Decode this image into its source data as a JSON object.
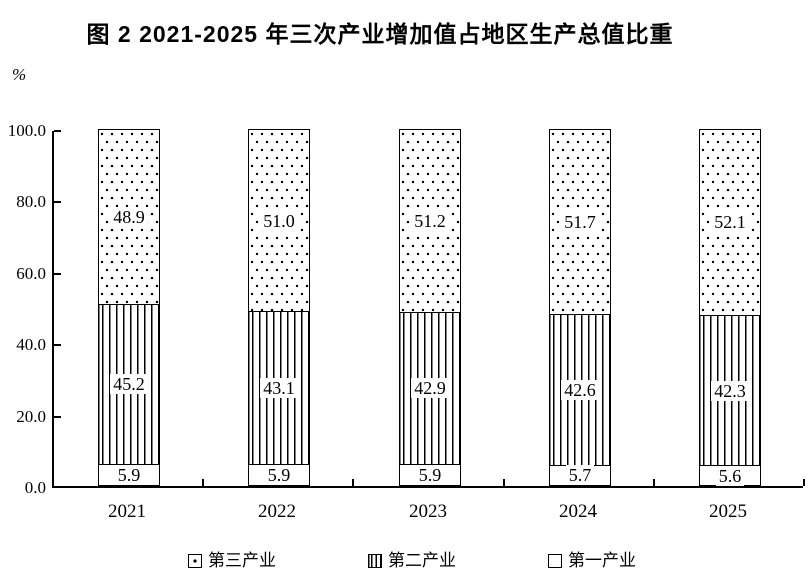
{
  "title": "图 2   2021-2025 年三次产业增加值占地区生产总值比重",
  "unit": "%",
  "colors": {
    "ink": "#000000",
    "background": "#ffffff"
  },
  "chart_data": {
    "type": "bar",
    "stacked": true,
    "title": "图 2 2021-2025 年三次产业增加值占地区生产总值比重",
    "xlabel": "",
    "ylabel": "%",
    "ylim": [
      0,
      100
    ],
    "yticks": [
      "100.0",
      "80.0",
      "60.0",
      "40.0",
      "20.0",
      "0.0"
    ],
    "grid": false,
    "legend_position": "bottom",
    "categories": [
      "2021",
      "2022",
      "2023",
      "2024",
      "2025"
    ],
    "series": [
      {
        "key": "primary",
        "name": "第一产业",
        "pattern": "plain",
        "values": [
          "5.9",
          "5.9",
          "5.9",
          "5.7",
          "5.6"
        ]
      },
      {
        "key": "secondary",
        "name": "第二产业",
        "pattern": "vlines",
        "values": [
          "45.2",
          "43.1",
          "42.9",
          "42.6",
          "42.3"
        ]
      },
      {
        "key": "tertiary",
        "name": "第三产业",
        "pattern": "dots",
        "values": [
          "48.9",
          "51.0",
          "51.2",
          "51.7",
          "52.1"
        ]
      }
    ],
    "legend": [
      {
        "key": "tertiary",
        "label": "第三产业",
        "pattern": "dots"
      },
      {
        "key": "secondary",
        "label": "第二产业",
        "pattern": "vlines"
      },
      {
        "key": "primary",
        "label": "第一产业",
        "pattern": "plain"
      }
    ]
  }
}
